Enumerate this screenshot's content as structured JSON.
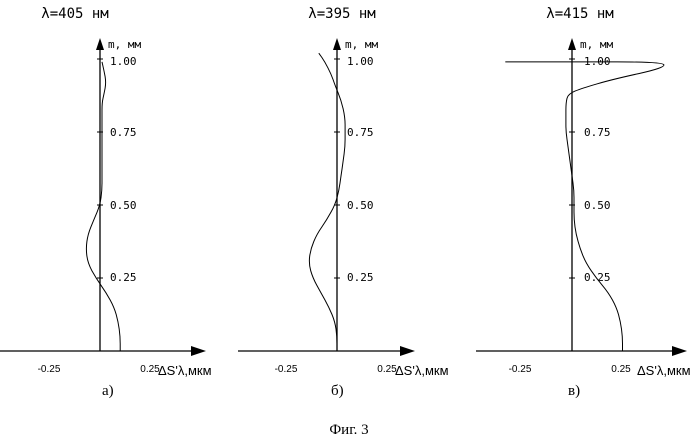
{
  "figure": {
    "caption": "Фиг. 3"
  },
  "chart_data": [
    {
      "type": "line",
      "title": "λ=405 нм",
      "panel_label": "а)",
      "ylabel": "m, мм",
      "xlabel": "ΔS'λ,мкм",
      "xlim": [
        -0.25,
        0.25
      ],
      "ylim": [
        0,
        1.0
      ],
      "xticks": [
        "-0.25",
        "0.25"
      ],
      "yticks": [
        "0.25",
        "0.50",
        "0.75",
        "1.00"
      ],
      "yticks_values": [
        0.25,
        0.5,
        0.75,
        1.0
      ],
      "series": [
        {
          "points": [
            [
              0.1,
              0.0
            ],
            [
              0.1,
              0.05
            ],
            [
              0.09,
              0.1
            ],
            [
              0.07,
              0.15
            ],
            [
              0.03,
              0.2
            ],
            [
              -0.02,
              0.25
            ],
            [
              -0.06,
              0.3
            ],
            [
              -0.07,
              0.35
            ],
            [
              -0.06,
              0.4
            ],
            [
              -0.03,
              0.45
            ],
            [
              0.0,
              0.5
            ],
            [
              0.01,
              0.55
            ],
            [
              0.01,
              0.6
            ],
            [
              0.01,
              0.65
            ],
            [
              0.01,
              0.7
            ],
            [
              0.01,
              0.75
            ],
            [
              0.01,
              0.8
            ],
            [
              0.01,
              0.85
            ],
            [
              0.02,
              0.88
            ],
            [
              0.03,
              0.92
            ],
            [
              0.02,
              0.96
            ],
            [
              0.01,
              0.99
            ]
          ]
        }
      ]
    },
    {
      "type": "line",
      "title": "λ=395 нм",
      "panel_label": "б)",
      "ylabel": "m, мм",
      "xlabel": "ΔS'λ,мкм",
      "xlim": [
        -0.25,
        0.25
      ],
      "ylim": [
        0,
        1.0
      ],
      "xticks": [
        "-0.25",
        "0.25"
      ],
      "yticks": [
        "0.25",
        "0.50",
        "0.75",
        "1.00"
      ],
      "yticks_values": [
        0.25,
        0.5,
        0.75,
        1.0
      ],
      "series": [
        {
          "points": [
            [
              0.0,
              0.0
            ],
            [
              0.0,
              0.05
            ],
            [
              -0.01,
              0.1
            ],
            [
              -0.04,
              0.15
            ],
            [
              -0.08,
              0.2
            ],
            [
              -0.12,
              0.25
            ],
            [
              -0.14,
              0.3
            ],
            [
              -0.13,
              0.35
            ],
            [
              -0.1,
              0.4
            ],
            [
              -0.05,
              0.45
            ],
            [
              -0.01,
              0.5
            ],
            [
              0.01,
              0.55
            ],
            [
              0.02,
              0.6
            ],
            [
              0.03,
              0.65
            ],
            [
              0.04,
              0.7
            ],
            [
              0.04,
              0.75
            ],
            [
              0.04,
              0.8
            ],
            [
              0.02,
              0.86
            ],
            [
              -0.01,
              0.91
            ],
            [
              -0.03,
              0.95
            ],
            [
              -0.06,
              0.99
            ],
            [
              -0.09,
              1.02
            ]
          ]
        }
      ]
    },
    {
      "type": "line",
      "title": "λ=415 нм",
      "panel_label": "в)",
      "ylabel": "m, мм",
      "xlabel": "ΔS'λ,мкм",
      "xlim": [
        -0.25,
        0.25
      ],
      "ylim": [
        0,
        1.0
      ],
      "xticks": [
        "-0.25",
        "0.25"
      ],
      "yticks": [
        "0.25",
        "0.50",
        "0.75",
        "1.00"
      ],
      "yticks_values": [
        0.25,
        0.5,
        0.75,
        1.0
      ],
      "series": [
        {
          "points": [
            [
              0.25,
              0.0
            ],
            [
              0.25,
              0.05
            ],
            [
              0.24,
              0.1
            ],
            [
              0.22,
              0.15
            ],
            [
              0.18,
              0.2
            ],
            [
              0.12,
              0.25
            ],
            [
              0.07,
              0.3
            ],
            [
              0.04,
              0.35
            ],
            [
              0.02,
              0.4
            ],
            [
              0.01,
              0.45
            ],
            [
              0.01,
              0.5
            ],
            [
              0.01,
              0.55
            ],
            [
              0.0,
              0.6
            ],
            [
              -0.01,
              0.65
            ],
            [
              -0.02,
              0.7
            ],
            [
              -0.03,
              0.75
            ],
            [
              -0.03,
              0.8
            ],
            [
              -0.03,
              0.85
            ],
            [
              -0.02,
              0.88
            ],
            [
              0.05,
              0.9
            ],
            [
              0.2,
              0.93
            ],
            [
              0.46,
              0.97
            ],
            [
              0.45,
              0.99
            ],
            [
              0.0,
              0.99
            ],
            [
              -0.33,
              0.99
            ]
          ]
        }
      ]
    }
  ]
}
